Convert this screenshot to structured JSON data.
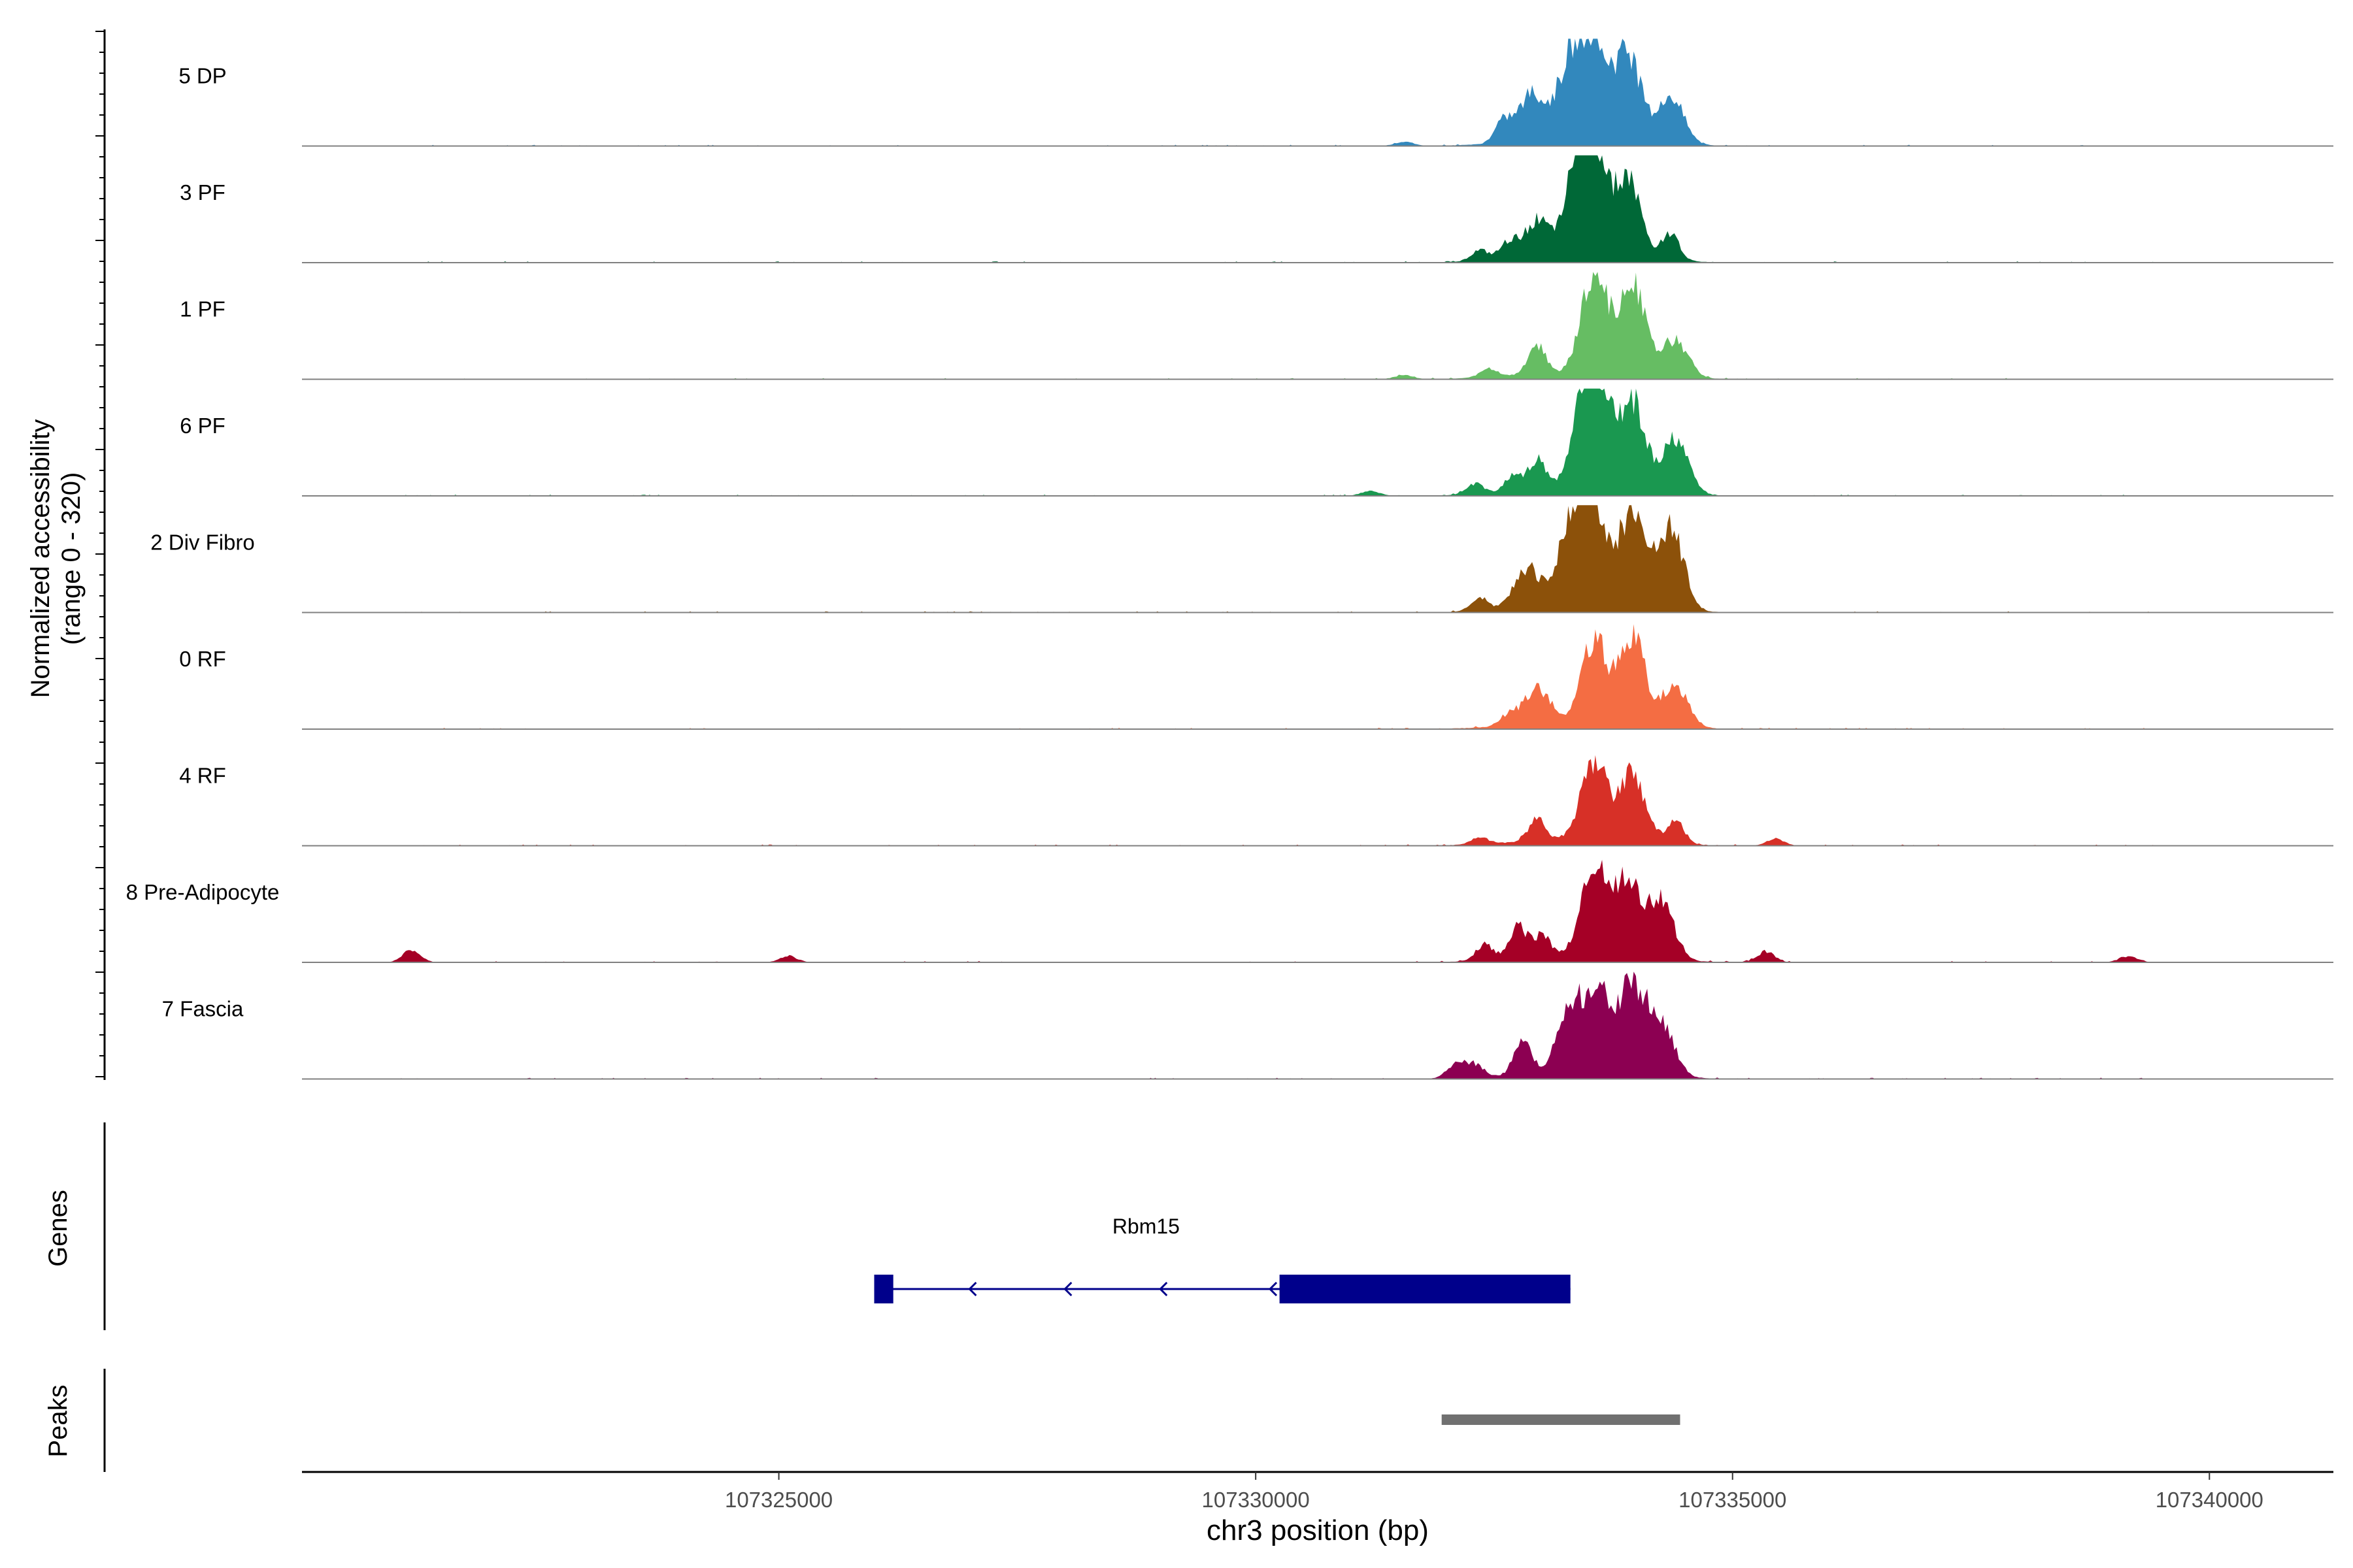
{
  "chart_data": {
    "type": "area",
    "chromosome": "chr3",
    "xlabel": "chr3 position (bp)",
    "ylabel_line1": "Normalized accessibility",
    "ylabel_line2": "(range 0 - 320)",
    "y_range": [
      0,
      320
    ],
    "xlim": [
      107320000,
      107341300
    ],
    "x_ticks": [
      107325000,
      107330000,
      107335000,
      107340000
    ],
    "x_tick_labels": [
      "107325000",
      "107330000",
      "107335000",
      "107340000"
    ],
    "tracks": [
      {
        "name": "5 DP",
        "color": "#3288bd",
        "peaks": [
          {
            "x": 107332600,
            "h": 0.2
          },
          {
            "x": 107332900,
            "h": 0.45
          },
          {
            "x": 107333300,
            "h": 0.72
          },
          {
            "x": 107333550,
            "h": 0.88
          },
          {
            "x": 107333900,
            "h": 0.83
          },
          {
            "x": 107334350,
            "h": 0.45
          },
          {
            "x": 107331550,
            "h": 0.04
          }
        ]
      },
      {
        "name": "3 PF",
        "color": "#006837",
        "peaks": [
          {
            "x": 107332350,
            "h": 0.1
          },
          {
            "x": 107332650,
            "h": 0.15
          },
          {
            "x": 107332950,
            "h": 0.35
          },
          {
            "x": 107333400,
            "h": 0.85
          },
          {
            "x": 107333550,
            "h": 0.8
          },
          {
            "x": 107333900,
            "h": 0.75
          },
          {
            "x": 107334350,
            "h": 0.25
          }
        ]
      },
      {
        "name": "1 PF",
        "color": "#66bd63",
        "peaks": [
          {
            "x": 107332450,
            "h": 0.08
          },
          {
            "x": 107332950,
            "h": 0.28
          },
          {
            "x": 107333550,
            "h": 0.95
          },
          {
            "x": 107333950,
            "h": 0.88
          },
          {
            "x": 107334400,
            "h": 0.35
          },
          {
            "x": 107331550,
            "h": 0.04
          }
        ]
      },
      {
        "name": "6 PF",
        "color": "#1a9850",
        "peaks": [
          {
            "x": 107332300,
            "h": 0.1
          },
          {
            "x": 107332700,
            "h": 0.16
          },
          {
            "x": 107332950,
            "h": 0.28
          },
          {
            "x": 107333450,
            "h": 0.78
          },
          {
            "x": 107333600,
            "h": 0.75
          },
          {
            "x": 107333950,
            "h": 0.85
          },
          {
            "x": 107334400,
            "h": 0.5
          },
          {
            "x": 107331200,
            "h": 0.05
          }
        ]
      },
      {
        "name": "2 Div Fibro",
        "color": "#8c510a",
        "peaks": [
          {
            "x": 107332350,
            "h": 0.12
          },
          {
            "x": 107332850,
            "h": 0.38
          },
          {
            "x": 107333300,
            "h": 0.7
          },
          {
            "x": 107333550,
            "h": 0.95
          },
          {
            "x": 107333950,
            "h": 0.9
          },
          {
            "x": 107334350,
            "h": 0.78
          }
        ]
      },
      {
        "name": "0 RF",
        "color": "#f46d43",
        "peaks": [
          {
            "x": 107332650,
            "h": 0.1
          },
          {
            "x": 107332950,
            "h": 0.35
          },
          {
            "x": 107333550,
            "h": 0.78
          },
          {
            "x": 107333950,
            "h": 0.82
          },
          {
            "x": 107334400,
            "h": 0.4
          }
        ]
      },
      {
        "name": "4 RF",
        "color": "#d73027",
        "peaks": [
          {
            "x": 107332350,
            "h": 0.06
          },
          {
            "x": 107332950,
            "h": 0.2
          },
          {
            "x": 107333550,
            "h": 0.72
          },
          {
            "x": 107333950,
            "h": 0.62
          },
          {
            "x": 107334400,
            "h": 0.22
          },
          {
            "x": 107335450,
            "h": 0.06
          }
        ]
      },
      {
        "name": "8 Pre-Adipocyte",
        "color": "#a50026",
        "peaks": [
          {
            "x": 107321150,
            "h": 0.12
          },
          {
            "x": 107325100,
            "h": 0.06
          },
          {
            "x": 107332400,
            "h": 0.15
          },
          {
            "x": 107332750,
            "h": 0.3
          },
          {
            "x": 107333000,
            "h": 0.2
          },
          {
            "x": 107333550,
            "h": 0.82
          },
          {
            "x": 107333900,
            "h": 0.72
          },
          {
            "x": 107334250,
            "h": 0.55
          },
          {
            "x": 107335350,
            "h": 0.1
          },
          {
            "x": 107339150,
            "h": 0.06
          }
        ]
      },
      {
        "name": "7 Fascia",
        "color": "#8c0052",
        "peaks": [
          {
            "x": 107332300,
            "h": 0.12
          },
          {
            "x": 107332800,
            "h": 0.3
          },
          {
            "x": 107333300,
            "h": 0.62
          },
          {
            "x": 107333600,
            "h": 0.75
          },
          {
            "x": 107333950,
            "h": 0.8
          },
          {
            "x": 107334250,
            "h": 0.5
          },
          {
            "x": 107332100,
            "h": 0.14
          }
        ]
      }
    ],
    "genes_label": "Genes",
    "gene": {
      "name": "Rbm15",
      "color": "#00008b",
      "strand": "-",
      "start": 107326000,
      "end": 107333300,
      "exons": [
        [
          107326000,
          107326200
        ],
        [
          107330250,
          107333300
        ]
      ],
      "arrows": [
        107327000,
        107328000,
        107329000,
        107330150
      ]
    },
    "peaks_label": "Peaks",
    "peak_region": {
      "start": 107331950,
      "end": 107334450,
      "color": "#707070"
    }
  }
}
